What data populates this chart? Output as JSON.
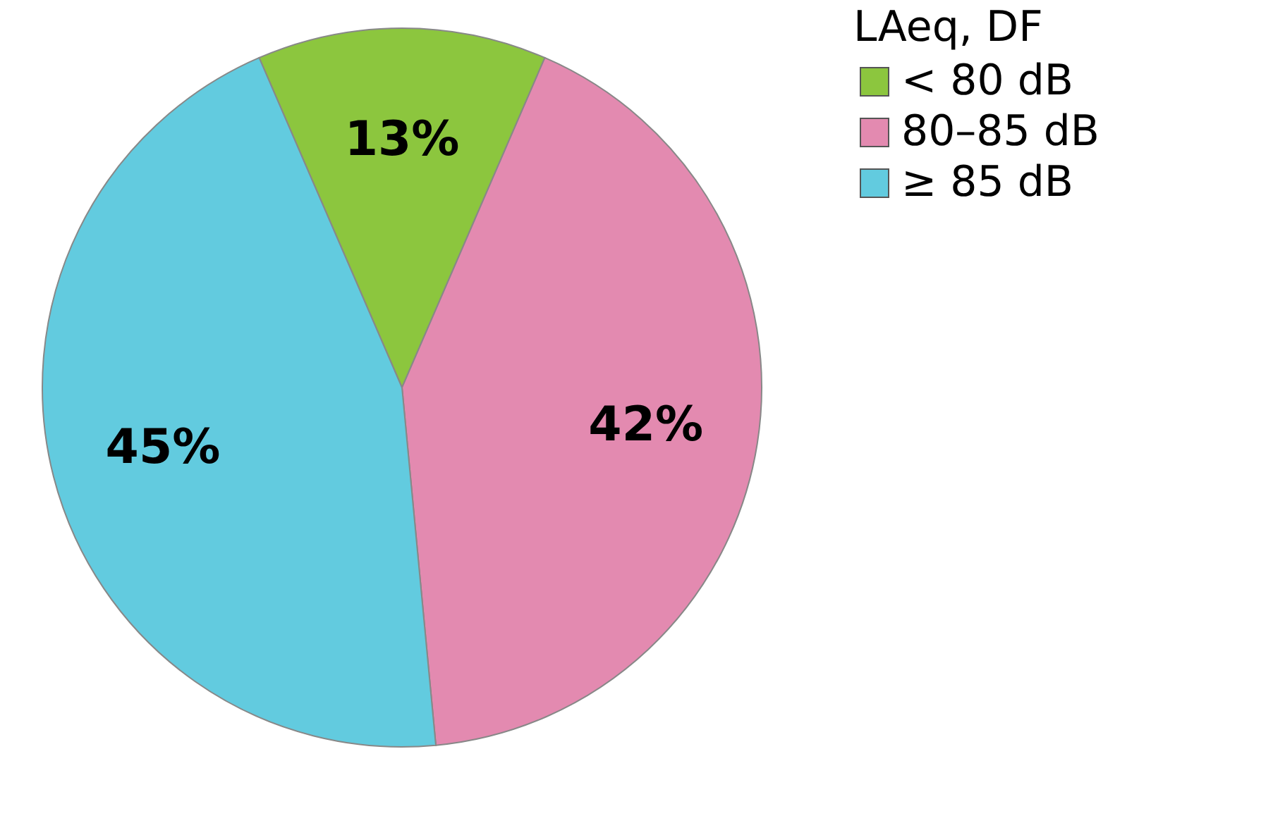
{
  "chart_data": {
    "type": "pie",
    "categories": [
      "< 80 dB",
      "80–85 dB",
      "≥ 85 dB"
    ],
    "values": [
      13,
      42,
      45
    ],
    "colors": [
      "#8cc63e",
      "#e38ab0",
      "#62cbdf"
    ],
    "value_labels": [
      "13%",
      "42%",
      "45%"
    ],
    "legend_title": "LAeq, DF",
    "legend": "right"
  }
}
